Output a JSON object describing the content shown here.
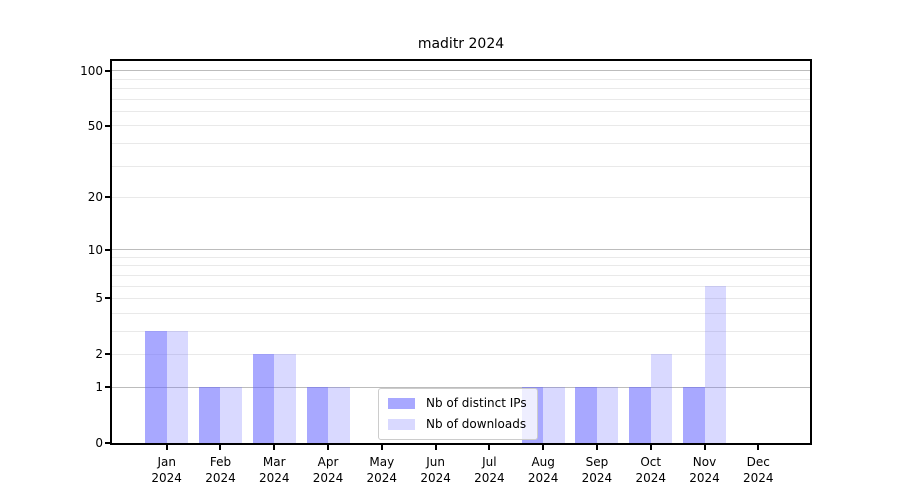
{
  "chart_data": {
    "type": "bar",
    "title": "maditr 2024",
    "categories": [
      {
        "month": "Jan",
        "year": "2024"
      },
      {
        "month": "Feb",
        "year": "2024"
      },
      {
        "month": "Mar",
        "year": "2024"
      },
      {
        "month": "Apr",
        "year": "2024"
      },
      {
        "month": "May",
        "year": "2024"
      },
      {
        "month": "Jun",
        "year": "2024"
      },
      {
        "month": "Jul",
        "year": "2024"
      },
      {
        "month": "Aug",
        "year": "2024"
      },
      {
        "month": "Sep",
        "year": "2024"
      },
      {
        "month": "Oct",
        "year": "2024"
      },
      {
        "month": "Nov",
        "year": "2024"
      },
      {
        "month": "Dec",
        "year": "2024"
      }
    ],
    "series": [
      {
        "name": "Nb of distinct IPs",
        "color": "rgba(102,102,255,0.57)",
        "values": [
          3,
          1,
          2,
          1,
          0,
          0,
          0,
          1,
          1,
          1,
          1,
          0
        ]
      },
      {
        "name": "Nb of downloads",
        "color": "rgba(102,102,255,0.25)",
        "values": [
          3,
          1,
          2,
          1,
          0,
          0,
          0,
          1,
          1,
          2,
          6,
          0
        ]
      }
    ],
    "y_scale": "log1p",
    "ylim": [
      0,
      113
    ],
    "y_ticks": [
      0,
      1,
      2,
      5,
      10,
      20,
      50,
      100
    ],
    "y_major_gridlines": [
      1,
      10,
      100
    ],
    "y_minor_gridlines": [
      2,
      3,
      4,
      5,
      6,
      7,
      8,
      9,
      20,
      30,
      40,
      50,
      60,
      70,
      80,
      90
    ],
    "grid": true,
    "legend_position": "lower center",
    "colors": {
      "major_grid": "#bcbcbc",
      "minor_grid": "#e9e9e9",
      "axis": "#000000",
      "legend_border": "#cccccc",
      "background": "#ffffff"
    }
  }
}
